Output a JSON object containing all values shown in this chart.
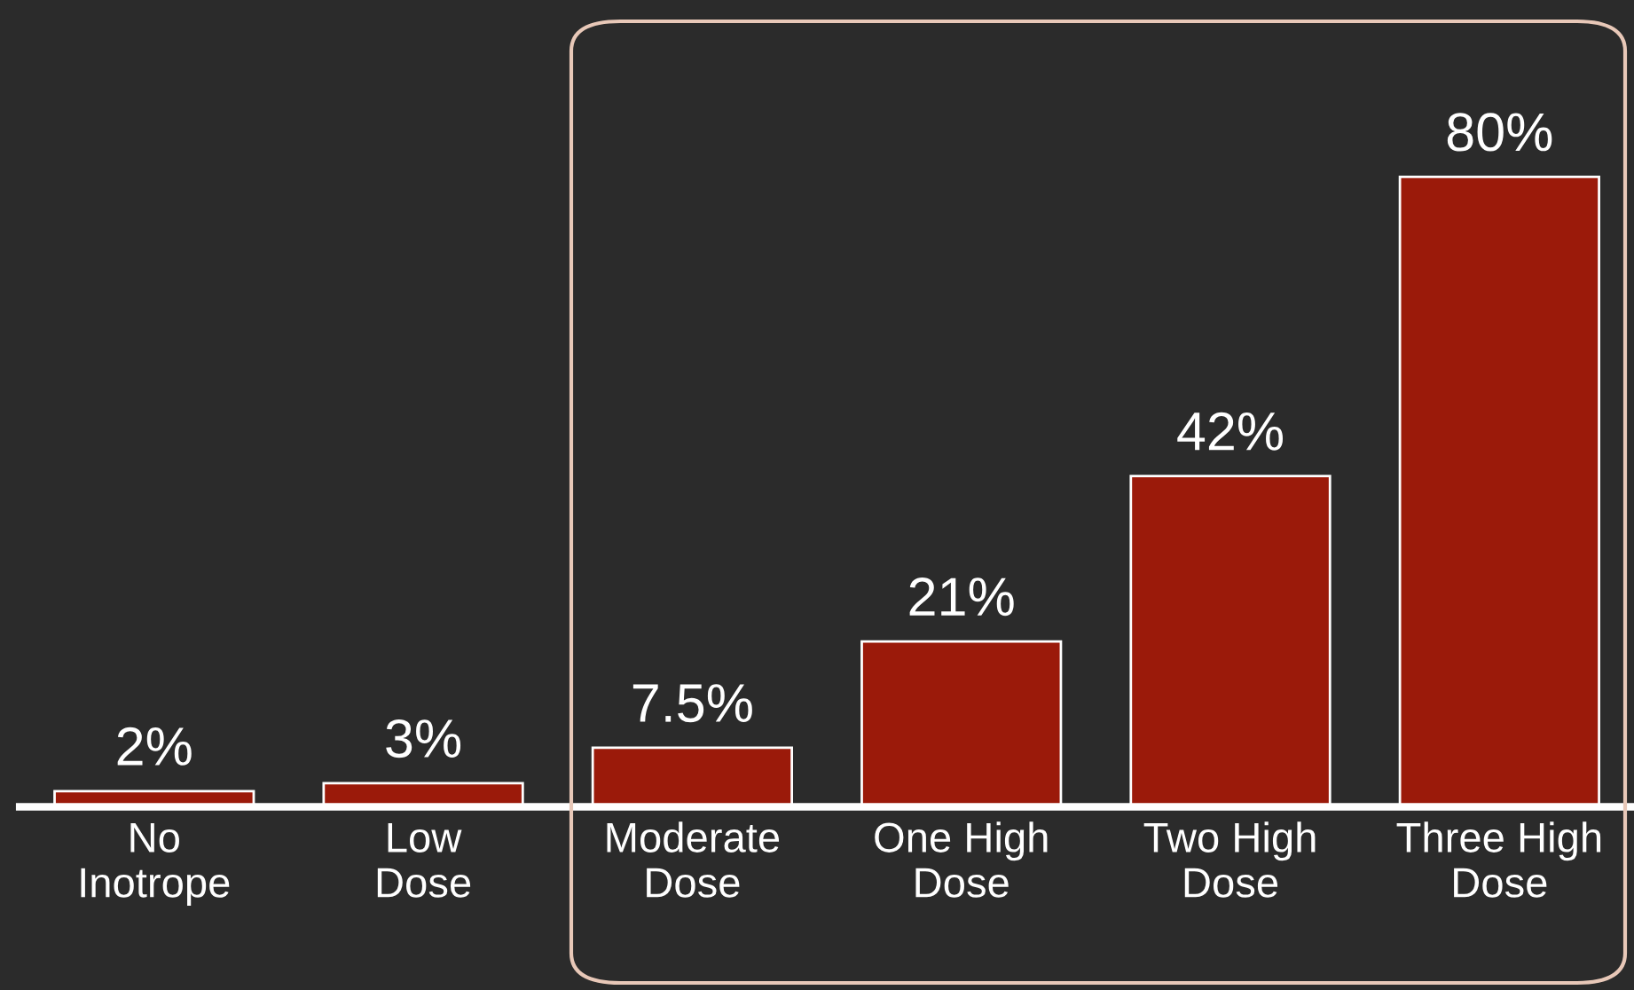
{
  "chart_data": {
    "type": "bar",
    "categories": [
      "No\nInotrope",
      "Low\nDose",
      "Moderate\nDose",
      "One High\nDose",
      "Two High\nDose",
      "Three High\nDose"
    ],
    "values": [
      2,
      3,
      7.5,
      21,
      42,
      80
    ],
    "value_labels": [
      "2%",
      "3%",
      "7.5%",
      "21%",
      "42%",
      "80%"
    ],
    "color": "#9b1a0a",
    "grid": false,
    "legend": false
  }
}
